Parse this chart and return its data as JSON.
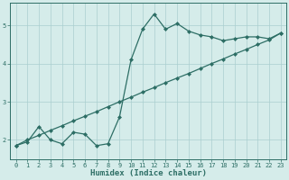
{
  "title": "",
  "xlabel": "Humidex (Indice chaleur)",
  "ylabel": "",
  "bg_color": "#d5ecea",
  "line_color": "#2d6e65",
  "grid_color": "#aacfcf",
  "curve1_x": [
    0,
    1,
    2,
    3,
    4,
    5,
    6,
    7,
    8,
    9,
    10,
    11,
    12,
    13,
    14,
    15,
    16,
    17,
    18,
    19,
    20,
    21,
    22,
    23
  ],
  "curve1_y": [
    1.85,
    1.95,
    2.35,
    2.0,
    1.9,
    2.2,
    2.15,
    1.85,
    1.9,
    2.6,
    4.1,
    4.9,
    5.3,
    4.9,
    5.05,
    4.85,
    4.75,
    4.7,
    4.6,
    4.65,
    4.7,
    4.7,
    4.65,
    4.8
  ],
  "curve2_x": [
    0,
    1,
    2,
    3,
    4,
    5,
    6,
    7,
    8,
    9,
    10,
    11,
    12,
    13,
    14,
    15,
    16,
    17,
    18,
    19,
    20,
    21,
    22,
    23
  ],
  "curve2_y": [
    1.85,
    2.0,
    2.12,
    2.25,
    2.37,
    2.5,
    2.62,
    2.74,
    2.87,
    3.0,
    3.12,
    3.25,
    3.37,
    3.5,
    3.62,
    3.74,
    3.87,
    4.0,
    4.12,
    4.25,
    4.37,
    4.5,
    4.62,
    4.8
  ],
  "xlim": [
    -0.5,
    23.5
  ],
  "ylim": [
    1.5,
    5.6
  ],
  "yticks": [
    2,
    3,
    4,
    5
  ],
  "xticks": [
    0,
    1,
    2,
    3,
    4,
    5,
    6,
    7,
    8,
    9,
    10,
    11,
    12,
    13,
    14,
    15,
    16,
    17,
    18,
    19,
    20,
    21,
    22,
    23
  ],
  "marker": "D",
  "markersize": 2.0,
  "linewidth": 0.9,
  "tick_fontsize": 5.0,
  "label_fontsize": 6.5
}
